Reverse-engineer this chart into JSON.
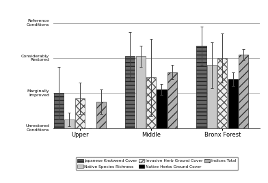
{
  "groups": [
    "Upper",
    "Middle",
    "Bronx Forest"
  ],
  "series": [
    {
      "name": "Japanese Knotweed Cover",
      "hatch": "---",
      "facecolor": "#666666",
      "edgecolor": "#222222",
      "values": [
        2.0,
        4.1,
        4.7
      ],
      "errors": [
        1.5,
        1.4,
        1.1
      ]
    },
    {
      "name": "Native Species Richness",
      "hatch": "",
      "facecolor": "#c8c8c8",
      "edgecolor": "#555555",
      "values": [
        0.5,
        4.1,
        3.6
      ],
      "errors": [
        0.4,
        0.6,
        1.3
      ]
    },
    {
      "name": "Invasive Herb Ground Cover",
      "hatch": "xxx",
      "facecolor": "#eeeeee",
      "edgecolor": "#555555",
      "values": [
        1.7,
        2.9,
        4.0
      ],
      "errors": [
        0.9,
        2.2,
        1.4
      ]
    },
    {
      "name": "Native Herbs Ground Cover",
      "hatch": "",
      "facecolor": "#000000",
      "edgecolor": "#000000",
      "values": [
        0.0,
        2.2,
        2.8
      ],
      "errors": [
        0.0,
        0.3,
        0.4
      ]
    },
    {
      "name": "Indices Total",
      "hatch": "///",
      "facecolor": "#b0b0b0",
      "edgecolor": "#333333",
      "values": [
        1.5,
        3.2,
        4.2
      ],
      "errors": [
        0.7,
        0.4,
        0.3
      ]
    }
  ],
  "ytick_positions": [
    0,
    2,
    4,
    6
  ],
  "ytick_labels": [
    "Unrestored\nConditions",
    "Marginally\nImproved",
    "Considerably\nRestored",
    "Reference\nConditions"
  ],
  "hlines": [
    2,
    4,
    6
  ],
  "ylim": [
    0,
    7.0
  ],
  "background_color": "#ffffff",
  "bar_width": 0.13
}
